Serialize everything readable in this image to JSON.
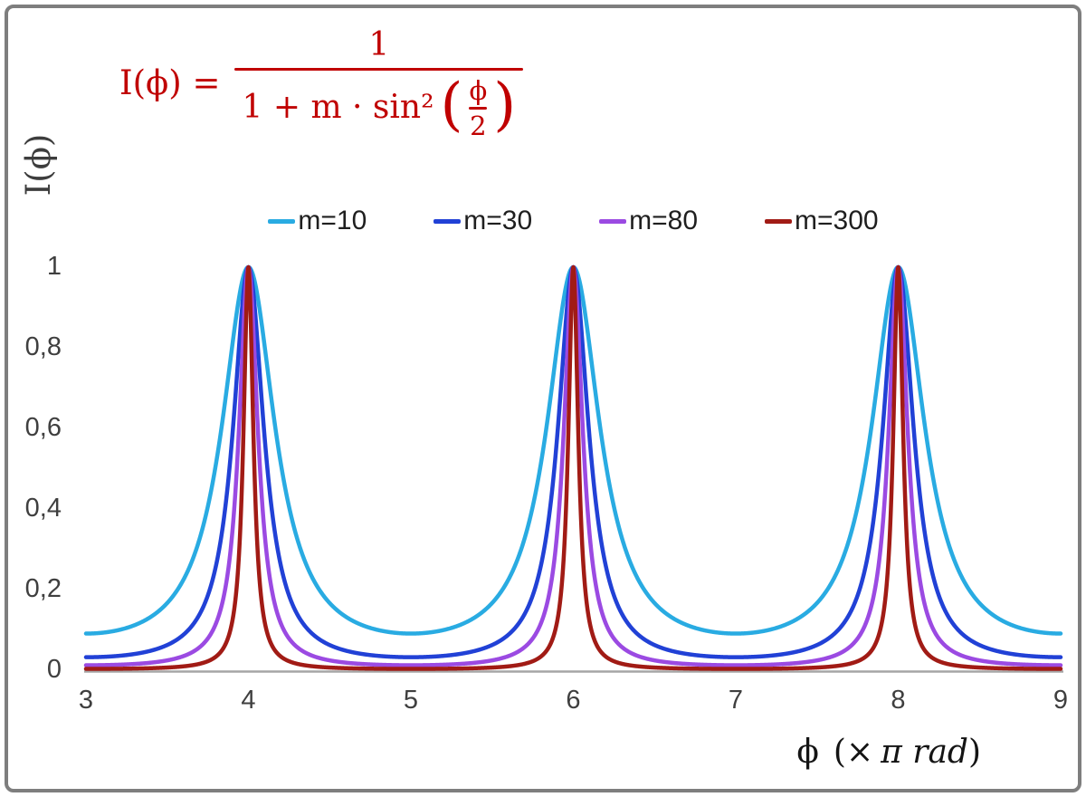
{
  "figure": {
    "background": "#ffffff",
    "border_color": "#7e7e7e"
  },
  "formula": {
    "lhs": "I(ϕ) =",
    "numerator": "1",
    "den_prefix": "1 + m · sin²",
    "lparen": "(",
    "inner_num": "ϕ",
    "inner_den": "2",
    "rparen": ")",
    "color": "#c00000"
  },
  "axes": {
    "y_title": "I(ϕ)",
    "x_title_phi": "ϕ",
    "x_title_pre": "(×",
    "x_title_italic": "π rad",
    "x_title_close": ")"
  },
  "chart_data": {
    "type": "line",
    "title": "",
    "function": "I(x) = 1 / (1 + m · sin²(π·x/2)), x in units of π rad",
    "formula_displayed": "I(ϕ) = 1 / (1 + m·sin²(ϕ/2))",
    "xlabel": "ϕ (× π rad)",
    "ylabel": "I(ϕ)",
    "xlim": [
      3,
      9
    ],
    "ylim": [
      0,
      1
    ],
    "grid": false,
    "legend_position": "top-center",
    "axis_line_color": "#a6a6a6",
    "x_ticks": [
      {
        "value": 3,
        "label": "3"
      },
      {
        "value": 4,
        "label": "4"
      },
      {
        "value": 5,
        "label": "5"
      },
      {
        "value": 6,
        "label": "6"
      },
      {
        "value": 7,
        "label": "7"
      },
      {
        "value": 8,
        "label": "8"
      },
      {
        "value": 9,
        "label": "9"
      }
    ],
    "y_ticks": [
      {
        "value": 0,
        "label": "0"
      },
      {
        "value": 0.2,
        "label": "0,2"
      },
      {
        "value": 0.4,
        "label": "0,4"
      },
      {
        "value": 0.6,
        "label": "0,6"
      },
      {
        "value": 0.8,
        "label": "0,8"
      },
      {
        "value": 1,
        "label": "1"
      }
    ],
    "peaks": {
      "x": [
        4,
        6,
        8
      ],
      "value": 1
    },
    "series": [
      {
        "name": "m=10",
        "m": 10,
        "color": "#29abe2",
        "min_value": 0.0909
      },
      {
        "name": "m=30",
        "m": 30,
        "color": "#2141d6",
        "min_value": 0.0323
      },
      {
        "name": "m=80",
        "m": 80,
        "color": "#9b4ae2",
        "min_value": 0.0123
      },
      {
        "name": "m=300",
        "m": 300,
        "color": "#a11b15",
        "min_value": 0.0033
      }
    ]
  }
}
